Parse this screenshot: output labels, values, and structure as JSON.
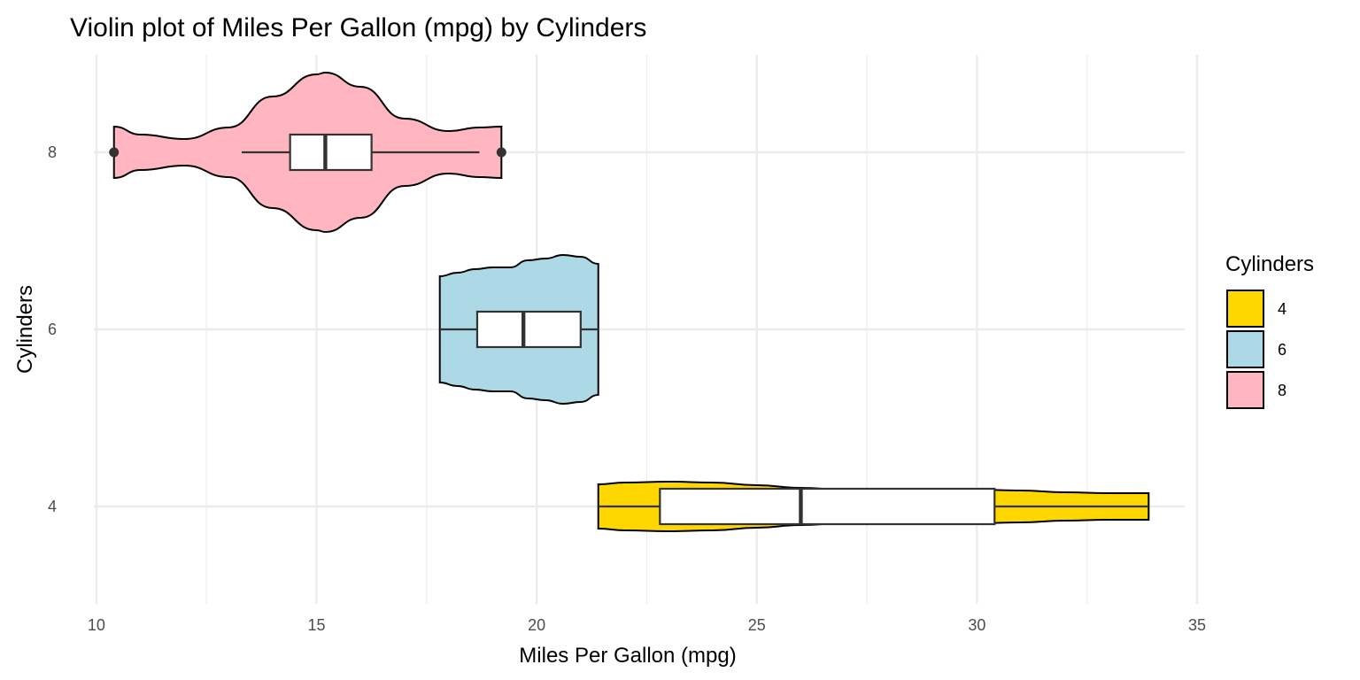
{
  "chart_data": {
    "type": "violin",
    "title": "Violin plot of Miles Per Gallon (mpg) by Cylinders",
    "xlabel": "Miles Per Gallon (mpg)",
    "ylabel": "Cylinders",
    "xlim": [
      9.4,
      35.0
    ],
    "ylim": [
      2.9,
      9.1
    ],
    "x_ticks": [
      10,
      15,
      20,
      25,
      30,
      35
    ],
    "y_ticks": [
      4,
      6,
      8
    ],
    "x_minor_ticks": [
      12.5,
      17.5,
      22.5,
      27.5,
      32.5
    ],
    "grid": true,
    "legend": {
      "title": "Cylinders",
      "position": "right",
      "entries": [
        {
          "label": "4",
          "color": "#FFD700"
        },
        {
          "label": "6",
          "color": "#ADD8E6"
        },
        {
          "label": "8",
          "color": "#FFB6C1"
        }
      ]
    },
    "series": [
      {
        "name": "4",
        "y": 4,
        "color": "#FFD700",
        "min": 21.4,
        "q1": 22.8,
        "median": 26.0,
        "q3": 30.4,
        "max": 33.9,
        "outliers": [],
        "violin_x": [
          21.4,
          22.0,
          23.0,
          24.0,
          25.0,
          26.0,
          27.0,
          28.0,
          29.0,
          30.0,
          31.0,
          32.0,
          33.0,
          33.9
        ],
        "violin_halfwidth": [
          0.25,
          0.27,
          0.28,
          0.27,
          0.24,
          0.21,
          0.19,
          0.19,
          0.19,
          0.19,
          0.18,
          0.16,
          0.15,
          0.15
        ]
      },
      {
        "name": "6",
        "y": 6,
        "color": "#ADD8E6",
        "min": 17.8,
        "q1": 18.65,
        "median": 19.7,
        "q3": 21.0,
        "max": 21.4,
        "outliers": [],
        "violin_x": [
          17.8,
          18.2,
          18.6,
          19.0,
          19.4,
          19.8,
          20.2,
          20.6,
          21.0,
          21.4
        ],
        "violin_halfwidth": [
          0.6,
          0.64,
          0.68,
          0.7,
          0.7,
          0.78,
          0.8,
          0.84,
          0.82,
          0.74
        ]
      },
      {
        "name": "8",
        "y": 8,
        "color": "#FFB6C1",
        "min": 13.3,
        "q1": 14.4,
        "median": 15.2,
        "q3": 16.25,
        "max": 18.7,
        "outliers": [
          10.4,
          19.2
        ],
        "violin_x": [
          10.4,
          11.0,
          12.0,
          13.0,
          14.0,
          15.0,
          15.2,
          16.0,
          17.0,
          18.0,
          18.7,
          19.2
        ],
        "violin_halfwidth": [
          0.29,
          0.2,
          0.15,
          0.28,
          0.63,
          0.88,
          0.9,
          0.74,
          0.38,
          0.24,
          0.28,
          0.29
        ]
      }
    ]
  }
}
